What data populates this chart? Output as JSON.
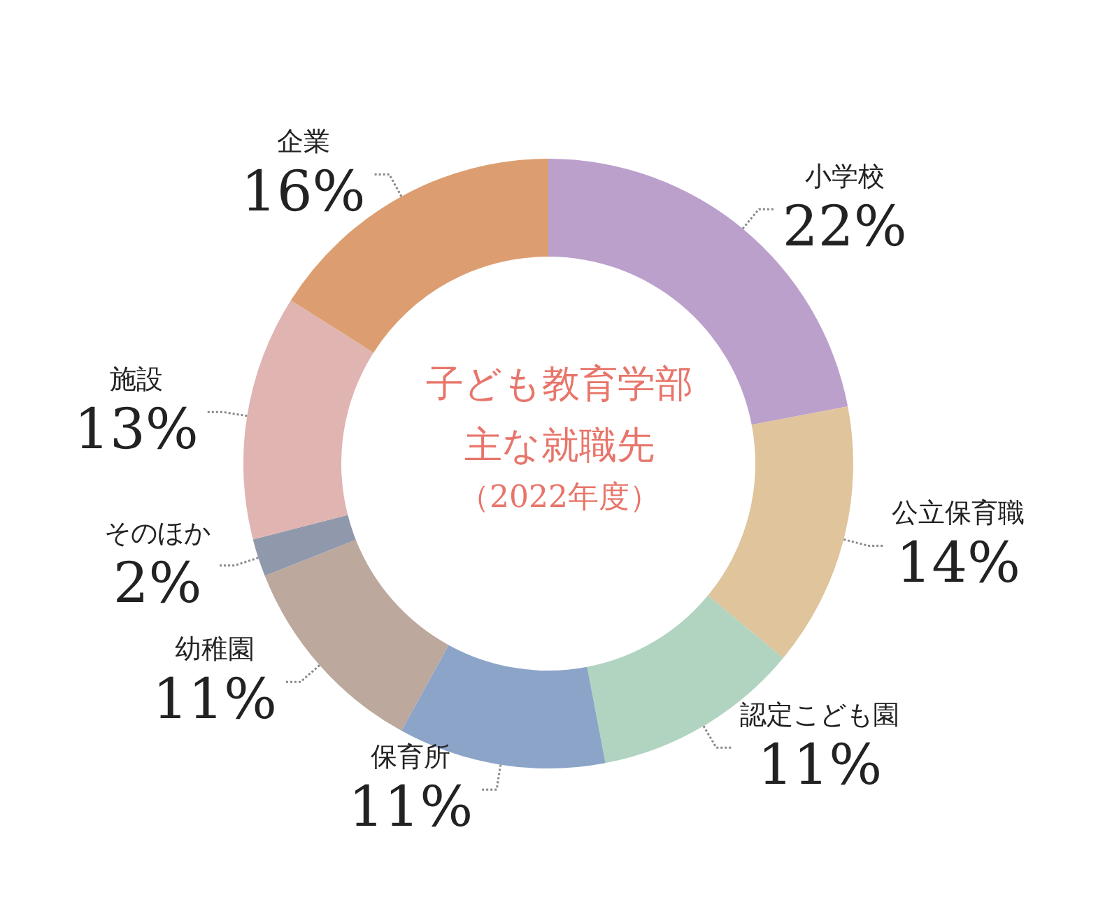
{
  "chart_data": {
    "type": "donut",
    "title": "子ども教育学部主な就職先",
    "subtitle": "（2022年度）",
    "categories": [
      "小学校",
      "公立保育職",
      "認定こども園",
      "保育所",
      "幼稚園",
      "そのほか",
      "施設",
      "企業"
    ],
    "values": [
      22,
      14,
      11,
      11,
      11,
      2,
      13,
      16
    ],
    "value_labels": [
      "22%",
      "14%",
      "11%",
      "11%",
      "11%",
      "2%",
      "13%",
      "16%"
    ],
    "colors": [
      "#bba0cc",
      "#dfc49c",
      "#b0d4c0",
      "#8ca4c8",
      "#bca89c",
      "#9098ac",
      "#e0b4b0",
      "#dc9e70"
    ],
    "legend": false
  }
}
